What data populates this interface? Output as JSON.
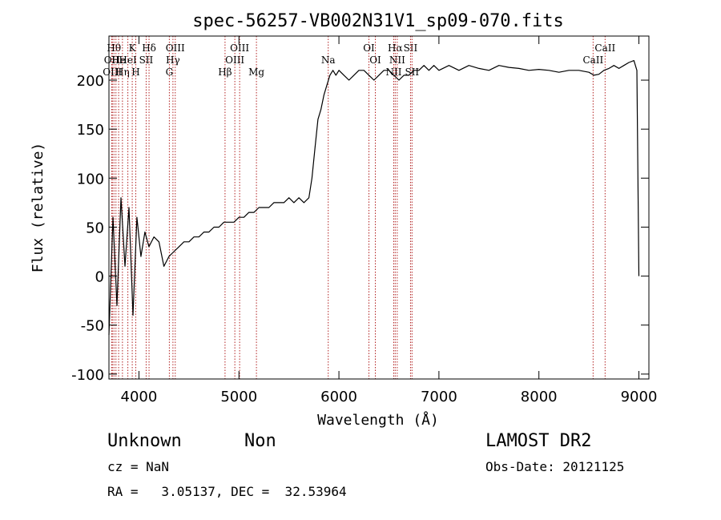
{
  "chart_data": {
    "type": "line",
    "title": "spec-56257-VB002N31V1_sp09-070.fits",
    "xlabel": "Wavelength (Å)",
    "ylabel": "Flux (relative)",
    "xlim": [
      3700,
      9100
    ],
    "ylim": [
      -105,
      245
    ],
    "xticks": [
      4000,
      5000,
      6000,
      7000,
      8000,
      9000
    ],
    "yticks": [
      -100,
      -50,
      0,
      50,
      100,
      150,
      200
    ],
    "grid": false,
    "line_color": "#000000",
    "marker_line_color": "#b22222",
    "series": [
      {
        "x": [
          3700,
          3740,
          3780,
          3820,
          3860,
          3900,
          3940,
          3980,
          4020,
          4060,
          4100,
          4150,
          4200,
          4250,
          4300,
          4350,
          4400,
          4450,
          4500,
          4550,
          4600,
          4650,
          4700,
          4750,
          4800,
          4850,
          4900,
          4950,
          5000,
          5050,
          5100,
          5150,
          5200,
          5250,
          5300,
          5350,
          5400,
          5450,
          5500,
          5550,
          5600,
          5650,
          5700,
          5730,
          5760,
          5790,
          5820,
          5850,
          5880,
          5910,
          5940,
          5970,
          6000,
          6050,
          6100,
          6150,
          6200,
          6250,
          6300,
          6350,
          6400,
          6450,
          6500,
          6550,
          6600,
          6650,
          6700,
          6750,
          6800,
          6850,
          6900,
          6950,
          7000,
          7100,
          7200,
          7300,
          7400,
          7500,
          7600,
          7700,
          7800,
          7900,
          8000,
          8100,
          8200,
          8300,
          8400,
          8500,
          8550,
          8600,
          8650,
          8700,
          8750,
          8800,
          8850,
          8900,
          8950,
          8980,
          9000
        ],
        "y": [
          -60,
          60,
          -30,
          80,
          10,
          70,
          -40,
          60,
          20,
          45,
          30,
          40,
          35,
          10,
          20,
          25,
          30,
          35,
          35,
          40,
          40,
          45,
          45,
          50,
          50,
          55,
          55,
          55,
          60,
          60,
          65,
          65,
          70,
          70,
          70,
          75,
          75,
          75,
          80,
          75,
          80,
          75,
          80,
          100,
          130,
          160,
          170,
          185,
          195,
          205,
          210,
          205,
          210,
          205,
          200,
          205,
          210,
          210,
          205,
          200,
          205,
          210,
          210,
          205,
          200,
          205,
          205,
          210,
          210,
          215,
          210,
          215,
          210,
          215,
          210,
          215,
          212,
          210,
          215,
          213,
          212,
          210,
          211,
          210,
          208,
          210,
          210,
          208,
          205,
          206,
          210,
          212,
          215,
          212,
          215,
          218,
          220,
          210,
          0
        ]
      }
    ],
    "line_markers": [
      {
        "x": 3727,
        "label": "OII",
        "row": 2
      },
      {
        "x": 3734,
        "label": "OIII",
        "row": 3
      },
      {
        "x": 3750,
        "label": "Hθ",
        "row": 1
      },
      {
        "x": 3770,
        "label": "H",
        "row": 2
      },
      {
        "x": 3797,
        "label": "He",
        "row": 2
      },
      {
        "x": 3835,
        "label": "Hη",
        "row": 3
      },
      {
        "x": 3889,
        "label": "HeI",
        "row": 2
      },
      {
        "x": 3933,
        "label": "K",
        "row": 1
      },
      {
        "x": 3968,
        "label": "H",
        "row": 3
      },
      {
        "x": 4072,
        "label": "SII",
        "row": 2
      },
      {
        "x": 4101,
        "label": "Hδ",
        "row": 1
      },
      {
        "x": 4304,
        "label": "G",
        "row": 3
      },
      {
        "x": 4340,
        "label": "Hγ",
        "row": 2
      },
      {
        "x": 4363,
        "label": "OIII",
        "row": 1
      },
      {
        "x": 4861,
        "label": "Hβ",
        "row": 3
      },
      {
        "x": 4959,
        "label": "OIII",
        "row": 2
      },
      {
        "x": 5007,
        "label": "OIII",
        "row": 1
      },
      {
        "x": 5175,
        "label": "Mg",
        "row": 3
      },
      {
        "x": 5893,
        "label": "Na",
        "row": 2
      },
      {
        "x": 6300,
        "label": "OI",
        "row": 1
      },
      {
        "x": 6364,
        "label": "OI",
        "row": 2
      },
      {
        "x": 6548,
        "label": "NII",
        "row": 3
      },
      {
        "x": 6563,
        "label": "Hα",
        "row": 1
      },
      {
        "x": 6583,
        "label": "NII",
        "row": 2
      },
      {
        "x": 6716,
        "label": "SII",
        "row": 1
      },
      {
        "x": 6731,
        "label": "SII",
        "row": 3
      },
      {
        "x": 8542,
        "label": "CaII",
        "row": 2
      },
      {
        "x": 8662,
        "label": "CaII",
        "row": 1
      }
    ]
  },
  "footer": {
    "classification": "Unknown",
    "subclass": "Non",
    "survey": "LAMOST DR2",
    "cz": "cz = NaN",
    "obs_date": "Obs-Date: 20121125",
    "coords": "RA =   3.05137, DEC =  32.53964"
  }
}
